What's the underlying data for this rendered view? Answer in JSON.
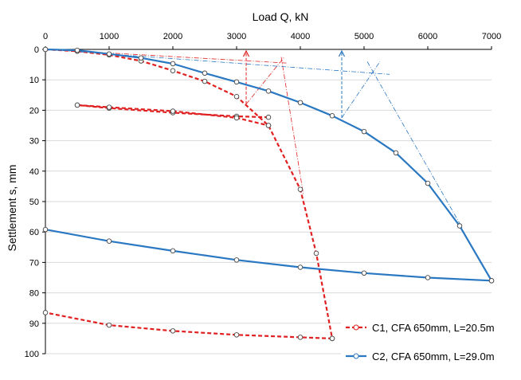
{
  "chart_data": {
    "type": "line",
    "xlabel": "Load Q,  kN",
    "ylabel": "Settlement s,  mm",
    "xlim": [
      0,
      7000
    ],
    "ylim": [
      0,
      100
    ],
    "x_axis_position": "top",
    "y_inverted": true,
    "x_ticks": [
      0,
      1000,
      2000,
      3000,
      4000,
      5000,
      6000,
      7000
    ],
    "y_ticks": [
      0,
      10,
      20,
      30,
      40,
      50,
      60,
      70,
      80,
      90,
      100
    ],
    "grid": true,
    "legend_position": "bottom-right",
    "series": [
      {
        "name": "C1, CFA 650mm, L=20.5m",
        "color": "#e02020",
        "line_style": "dashed",
        "branches": [
          {
            "role": "loading",
            "x": [
              0,
              500,
              1000,
              1500,
              2000,
              2500,
              3000,
              3500,
              4000,
              4250,
              4500
            ],
            "y": [
              0,
              0.6,
              1.8,
              3.8,
              7.0,
              10.5,
              15.5,
              25.0,
              46.0,
              67.0,
              95.0
            ]
          },
          {
            "role": "unloading",
            "x": [
              4500,
              4000,
              3000,
              2000,
              1000,
              0
            ],
            "y": [
              95.0,
              94.6,
              93.8,
              92.5,
              90.6,
              86.5
            ]
          },
          {
            "role": "cycle-unloading",
            "x": [
              3500,
              3000,
              2000,
              1000,
              500
            ],
            "y": [
              22.3,
              22.0,
              20.8,
              19.3,
              18.3
            ]
          },
          {
            "role": "cycle-reloading",
            "x": [
              500,
              1000,
              2000,
              3000,
              3500
            ],
            "y": [
              18.3,
              19.0,
              20.3,
              22.5,
              25.0
            ]
          }
        ]
      },
      {
        "name": "C2, CFA 650mm, L=29.0m",
        "color": "#2a78c2",
        "line_style": "solid",
        "branches": [
          {
            "role": "loading",
            "x": [
              0,
              500,
              1000,
              1500,
              2000,
              2500,
              3000,
              3500,
              4000,
              4500,
              5000,
              5500,
              6000,
              6500,
              7000
            ],
            "y": [
              0,
              0.3,
              1.5,
              2.8,
              4.7,
              7.8,
              10.7,
              13.7,
              17.5,
              21.8,
              27.0,
              34.0,
              44.0,
              58.0,
              76.0
            ]
          },
          {
            "role": "unloading",
            "x": [
              7000,
              6000,
              5000,
              4000,
              3000,
              2000,
              1000,
              0
            ],
            "y": [
              76.0,
              75.0,
              73.5,
              71.6,
              69.2,
              66.2,
              63.0,
              59.2
            ]
          }
        ]
      }
    ],
    "construction_lines": {
      "C1": {
        "color": "#e02020",
        "arrow_x": 3150,
        "tangent_initial": {
          "x": [
            0,
            3800
          ],
          "y": [
            0,
            4.5
          ]
        },
        "tangent_final": {
          "x": [
            3700,
            4050
          ],
          "y": [
            2.5,
            48.0
          ]
        },
        "projection": {
          "x": [
            3150,
            3750
          ],
          "y": [
            18.0,
            2.5
          ]
        }
      },
      "C2": {
        "color": "#2a78c2",
        "arrow_x": 4650,
        "tangent_initial": {
          "x": [
            0,
            5400
          ],
          "y": [
            0,
            8.2
          ]
        },
        "tangent_final": {
          "x": [
            5050,
            6550
          ],
          "y": [
            4.0,
            59.0
          ]
        },
        "projection": {
          "x": [
            4650,
            5250
          ],
          "y": [
            22.5,
            4.0
          ]
        }
      }
    }
  }
}
